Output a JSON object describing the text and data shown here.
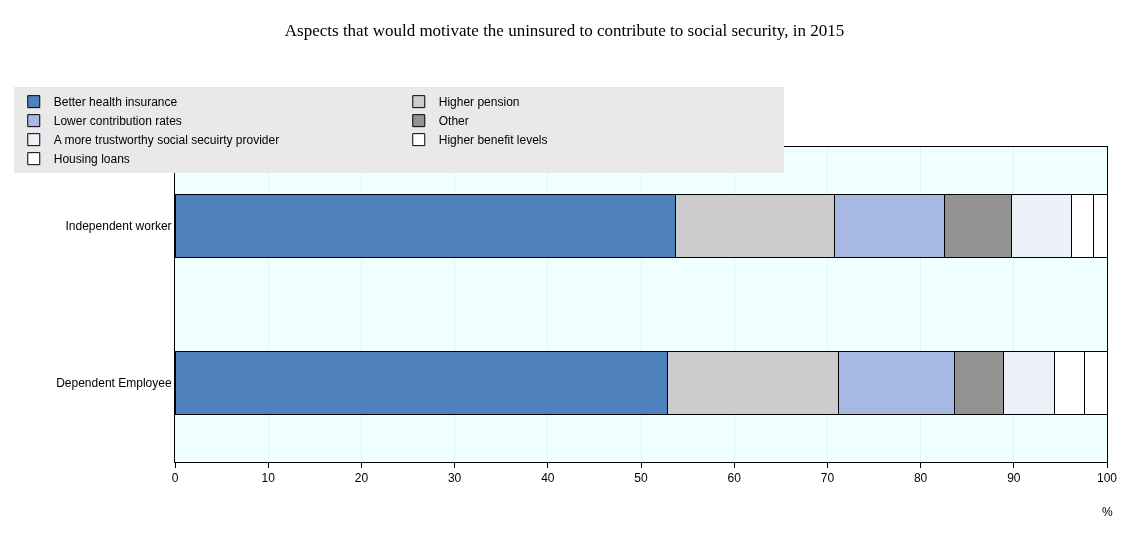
{
  "chart_data": {
    "type": "bar",
    "orientation": "horizontal",
    "stacked": true,
    "title": "Aspects that would motivate the uninsured to contribute to social security, in 2015",
    "xlabel": "%",
    "categories": [
      "Independent worker",
      "Dependent Employee"
    ],
    "series": [
      {
        "name": "Better health insurance",
        "color": "#4f81bd",
        "values": [
          53.7,
          52.8
        ]
      },
      {
        "name": "Higher pension",
        "color": "#cccccc",
        "values": [
          17.1,
          18.4
        ]
      },
      {
        "name": "Lower contribution rates",
        "color": "#a7b9e3",
        "values": [
          11.8,
          12.4
        ]
      },
      {
        "name": "Other",
        "color": "#929292",
        "values": [
          7.1,
          5.3
        ]
      },
      {
        "name": "A more trustworthy social secuirty provider",
        "color": "#edf0f8",
        "values": [
          6.5,
          5.5
        ]
      },
      {
        "name": "Higher benefit levels",
        "color": "#ffffff",
        "values": [
          2.3,
          3.2
        ]
      },
      {
        "name": "Housing loans",
        "color": "#ffffff",
        "values": [
          1.5,
          2.4
        ]
      }
    ],
    "xlim": [
      0,
      100
    ],
    "xticks": [
      0,
      10,
      20,
      30,
      40,
      50,
      60,
      70,
      80,
      90,
      100
    ],
    "grid": "x",
    "legend": "top"
  }
}
